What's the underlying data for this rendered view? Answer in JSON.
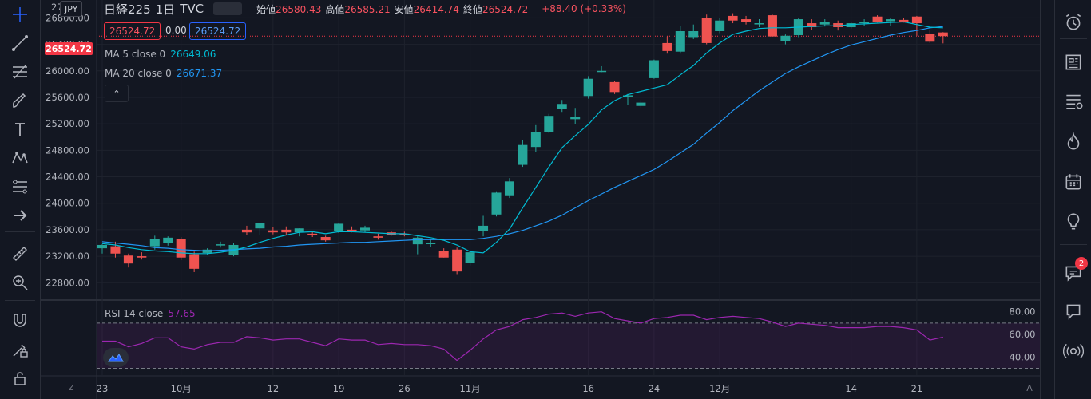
{
  "header": {
    "symbol": "日経225",
    "interval": "1日",
    "source": "TVC",
    "currency": "JPY",
    "ohlc": [
      {
        "key": "始値",
        "value": "26580.43"
      },
      {
        "key": "高値",
        "value": "26585.21"
      },
      {
        "key": "安値",
        "value": "26414.74"
      },
      {
        "key": "終値",
        "value": "26524.72"
      }
    ],
    "change": "+88.40 (+0.33%)",
    "sell_price": "26524.72",
    "spread": "0.00",
    "buy_price": "26524.72"
  },
  "indicators": {
    "ma5": {
      "label": "MA 5 close 0",
      "value": "26649.06"
    },
    "ma20": {
      "label": "MA 20 close 0",
      "value": "26671.37"
    },
    "rsi": {
      "label": "RSI 14 close",
      "value": "57.65"
    },
    "collapse_glyph": "⌃"
  },
  "price_axis": {
    "current_price": "26524.72",
    "top_partial": "27",
    "ticks": [
      "26800.00",
      "26400.00",
      "26000.00",
      "25600.00",
      "25200.00",
      "24800.00",
      "24400.00",
      "24000.00",
      "23600.00",
      "23200.00",
      "22800.00"
    ]
  },
  "rsi_axis": {
    "ticks": [
      "80.00",
      "60.00",
      "40.00"
    ]
  },
  "time_axis": {
    "labels": [
      {
        "text": "23",
        "i": 0
      },
      {
        "text": "10月",
        "i": 6
      },
      {
        "text": "12",
        "i": 13
      },
      {
        "text": "19",
        "i": 18
      },
      {
        "text": "26",
        "i": 23
      },
      {
        "text": "11月",
        "i": 28
      },
      {
        "text": "16",
        "i": 37
      },
      {
        "text": "24",
        "i": 42
      },
      {
        "text": "12月",
        "i": 47
      },
      {
        "text": "14",
        "i": 57
      },
      {
        "text": "21",
        "i": 62
      }
    ],
    "z_label": "Z",
    "a_label": "A"
  },
  "colors": {
    "up": "#26a69a",
    "down": "#ef5350",
    "ma5": "#00bcd4",
    "ma20": "#2196f3",
    "rsi": "#9c27b0",
    "grid": "#1e222d",
    "background": "#131722"
  },
  "left_toolbar": [
    "crosshair-icon",
    "trend-line-icon",
    "fib-icon",
    "brush-icon",
    "text-icon",
    "pattern-icon",
    "prediction-icon",
    "arrow-icon",
    "ruler-icon",
    "zoom-icon",
    "magnet-icon",
    "lock-drawings-icon",
    "lock-icon",
    "trash-icon"
  ],
  "right_toolbar": {
    "items": [
      "alarm-clock-icon",
      "news-icon",
      "watchlist-icon",
      "hotlist-icon",
      "calendar-icon",
      "ideas-icon",
      "chat-icon",
      "messages-icon",
      "signal-icon"
    ],
    "chat_badge": "2"
  },
  "chart_data": {
    "type": "candlestick",
    "candles": [
      {
        "o": 23320,
        "h": 23380,
        "l": 23240,
        "c": 23370
      },
      {
        "o": 23350,
        "h": 23420,
        "l": 23180,
        "c": 23240
      },
      {
        "o": 23210,
        "h": 23240,
        "l": 23030,
        "c": 23090
      },
      {
        "o": 23200,
        "h": 23260,
        "l": 23150,
        "c": 23180
      },
      {
        "o": 23350,
        "h": 23510,
        "l": 23300,
        "c": 23460
      },
      {
        "o": 23400,
        "h": 23500,
        "l": 23360,
        "c": 23480
      },
      {
        "o": 23460,
        "h": 23490,
        "l": 23140,
        "c": 23180
      },
      {
        "o": 23230,
        "h": 23270,
        "l": 22960,
        "c": 23010
      },
      {
        "o": 23250,
        "h": 23320,
        "l": 23220,
        "c": 23300
      },
      {
        "o": 23380,
        "h": 23420,
        "l": 23330,
        "c": 23380
      },
      {
        "o": 23220,
        "h": 23400,
        "l": 23200,
        "c": 23370
      },
      {
        "o": 23600,
        "h": 23660,
        "l": 23520,
        "c": 23560
      },
      {
        "o": 23620,
        "h": 23700,
        "l": 23520,
        "c": 23700
      },
      {
        "o": 23590,
        "h": 23640,
        "l": 23530,
        "c": 23560
      },
      {
        "o": 23600,
        "h": 23650,
        "l": 23520,
        "c": 23560
      },
      {
        "o": 23560,
        "h": 23620,
        "l": 23500,
        "c": 23620
      },
      {
        "o": 23540,
        "h": 23580,
        "l": 23490,
        "c": 23520
      },
      {
        "o": 23490,
        "h": 23510,
        "l": 23420,
        "c": 23440
      },
      {
        "o": 23580,
        "h": 23700,
        "l": 23550,
        "c": 23690
      },
      {
        "o": 23600,
        "h": 23650,
        "l": 23560,
        "c": 23580
      },
      {
        "o": 23590,
        "h": 23660,
        "l": 23560,
        "c": 23630
      },
      {
        "o": 23500,
        "h": 23540,
        "l": 23450,
        "c": 23480
      },
      {
        "o": 23560,
        "h": 23580,
        "l": 23510,
        "c": 23520
      },
      {
        "o": 23540,
        "h": 23570,
        "l": 23500,
        "c": 23520
      },
      {
        "o": 23380,
        "h": 23500,
        "l": 23230,
        "c": 23480
      },
      {
        "o": 23390,
        "h": 23460,
        "l": 23340,
        "c": 23400
      },
      {
        "o": 23280,
        "h": 23320,
        "l": 23180,
        "c": 23180
      },
      {
        "o": 23300,
        "h": 23330,
        "l": 22930,
        "c": 22970
      },
      {
        "o": 23100,
        "h": 23230,
        "l": 23060,
        "c": 23260
      },
      {
        "o": 23580,
        "h": 23810,
        "l": 23500,
        "c": 23660
      },
      {
        "o": 23830,
        "h": 24180,
        "l": 23800,
        "c": 24160
      },
      {
        "o": 24120,
        "h": 24380,
        "l": 24080,
        "c": 24330
      },
      {
        "o": 24580,
        "h": 24960,
        "l": 24550,
        "c": 24880
      },
      {
        "o": 24850,
        "h": 25180,
        "l": 24780,
        "c": 25080
      },
      {
        "o": 25080,
        "h": 25350,
        "l": 25060,
        "c": 25320
      },
      {
        "o": 25420,
        "h": 25560,
        "l": 25380,
        "c": 25500
      },
      {
        "o": 25270,
        "h": 25440,
        "l": 25200,
        "c": 25300
      },
      {
        "o": 25620,
        "h": 25920,
        "l": 25580,
        "c": 25880
      },
      {
        "o": 26000,
        "h": 26070,
        "l": 25980,
        "c": 26000
      },
      {
        "o": 25830,
        "h": 25850,
        "l": 25650,
        "c": 25680
      },
      {
        "o": 25630,
        "h": 25650,
        "l": 25480,
        "c": 25630
      },
      {
        "o": 25470,
        "h": 25560,
        "l": 25440,
        "c": 25520
      },
      {
        "o": 25890,
        "h": 26170,
        "l": 25880,
        "c": 26160
      },
      {
        "o": 26420,
        "h": 26520,
        "l": 26260,
        "c": 26300
      },
      {
        "o": 26290,
        "h": 26680,
        "l": 26260,
        "c": 26600
      },
      {
        "o": 26510,
        "h": 26700,
        "l": 26480,
        "c": 26600
      },
      {
        "o": 26800,
        "h": 26850,
        "l": 26400,
        "c": 26420
      },
      {
        "o": 26600,
        "h": 26800,
        "l": 26570,
        "c": 26760
      },
      {
        "o": 26830,
        "h": 26870,
        "l": 26720,
        "c": 26760
      },
      {
        "o": 26780,
        "h": 26830,
        "l": 26700,
        "c": 26740
      },
      {
        "o": 26720,
        "h": 26780,
        "l": 26660,
        "c": 26720
      },
      {
        "o": 26840,
        "h": 26850,
        "l": 26520,
        "c": 26520
      },
      {
        "o": 26450,
        "h": 26550,
        "l": 26400,
        "c": 26530
      },
      {
        "o": 26540,
        "h": 26800,
        "l": 26510,
        "c": 26780
      },
      {
        "o": 26720,
        "h": 26780,
        "l": 26620,
        "c": 26660
      },
      {
        "o": 26700,
        "h": 26780,
        "l": 26670,
        "c": 26740
      },
      {
        "o": 26720,
        "h": 26760,
        "l": 26610,
        "c": 26660
      },
      {
        "o": 26660,
        "h": 26740,
        "l": 26640,
        "c": 26720
      },
      {
        "o": 26720,
        "h": 26780,
        "l": 26680,
        "c": 26740
      },
      {
        "o": 26820,
        "h": 26840,
        "l": 26730,
        "c": 26740
      },
      {
        "o": 26750,
        "h": 26800,
        "l": 26680,
        "c": 26780
      },
      {
        "o": 26770,
        "h": 26800,
        "l": 26730,
        "c": 26740
      },
      {
        "o": 26820,
        "h": 26830,
        "l": 26530,
        "c": 26720
      },
      {
        "o": 26560,
        "h": 26620,
        "l": 26420,
        "c": 26440
      },
      {
        "o": 26580,
        "h": 26585,
        "l": 26415,
        "c": 26525
      }
    ],
    "ma5": [
      23390,
      23370,
      23330,
      23300,
      23280,
      23270,
      23250,
      23240,
      23240,
      23260,
      23290,
      23340,
      23410,
      23470,
      23520,
      23560,
      23570,
      23540,
      23570,
      23570,
      23560,
      23550,
      23540,
      23540,
      23510,
      23480,
      23440,
      23370,
      23270,
      23250,
      23410,
      23610,
      23930,
      24240,
      24550,
      24840,
      25020,
      25190,
      25410,
      25550,
      25640,
      25690,
      25740,
      25790,
      25940,
      26080,
      26270,
      26420,
      26550,
      26600,
      26640,
      26650,
      26650,
      26660,
      26670,
      26680,
      26680,
      26700,
      26710,
      26720,
      26730,
      26740,
      26700,
      26660,
      26650
    ],
    "ma20": [
      23420,
      23400,
      23380,
      23360,
      23330,
      23320,
      23300,
      23290,
      23280,
      23290,
      23300,
      23310,
      23320,
      23340,
      23350,
      23370,
      23380,
      23390,
      23400,
      23410,
      23410,
      23420,
      23430,
      23440,
      23450,
      23450,
      23450,
      23450,
      23450,
      23470,
      23500,
      23540,
      23590,
      23660,
      23730,
      23820,
      23930,
      24040,
      24140,
      24240,
      24330,
      24420,
      24510,
      24630,
      24760,
      24890,
      25060,
      25220,
      25400,
      25550,
      25700,
      25830,
      25960,
      26060,
      26150,
      26240,
      26320,
      26390,
      26440,
      26490,
      26540,
      26580,
      26610,
      26650,
      26670
    ],
    "rsi": [
      54,
      54,
      49,
      52,
      57,
      57,
      49,
      47,
      51,
      53,
      53,
      58,
      57,
      55,
      56,
      56,
      53,
      50,
      56,
      55,
      55,
      51,
      52,
      51,
      51,
      50,
      47,
      37,
      46,
      56,
      64,
      67,
      73,
      75,
      78,
      79,
      76,
      79,
      80,
      74,
      72,
      70,
      74,
      75,
      77,
      77,
      73,
      75,
      76,
      75,
      74,
      71,
      67,
      70,
      69,
      68,
      66,
      66,
      66,
      67,
      67,
      66,
      64,
      55,
      57.65
    ],
    "price_range": [
      22550,
      27070
    ],
    "rsi_range": [
      24,
      89
    ]
  }
}
